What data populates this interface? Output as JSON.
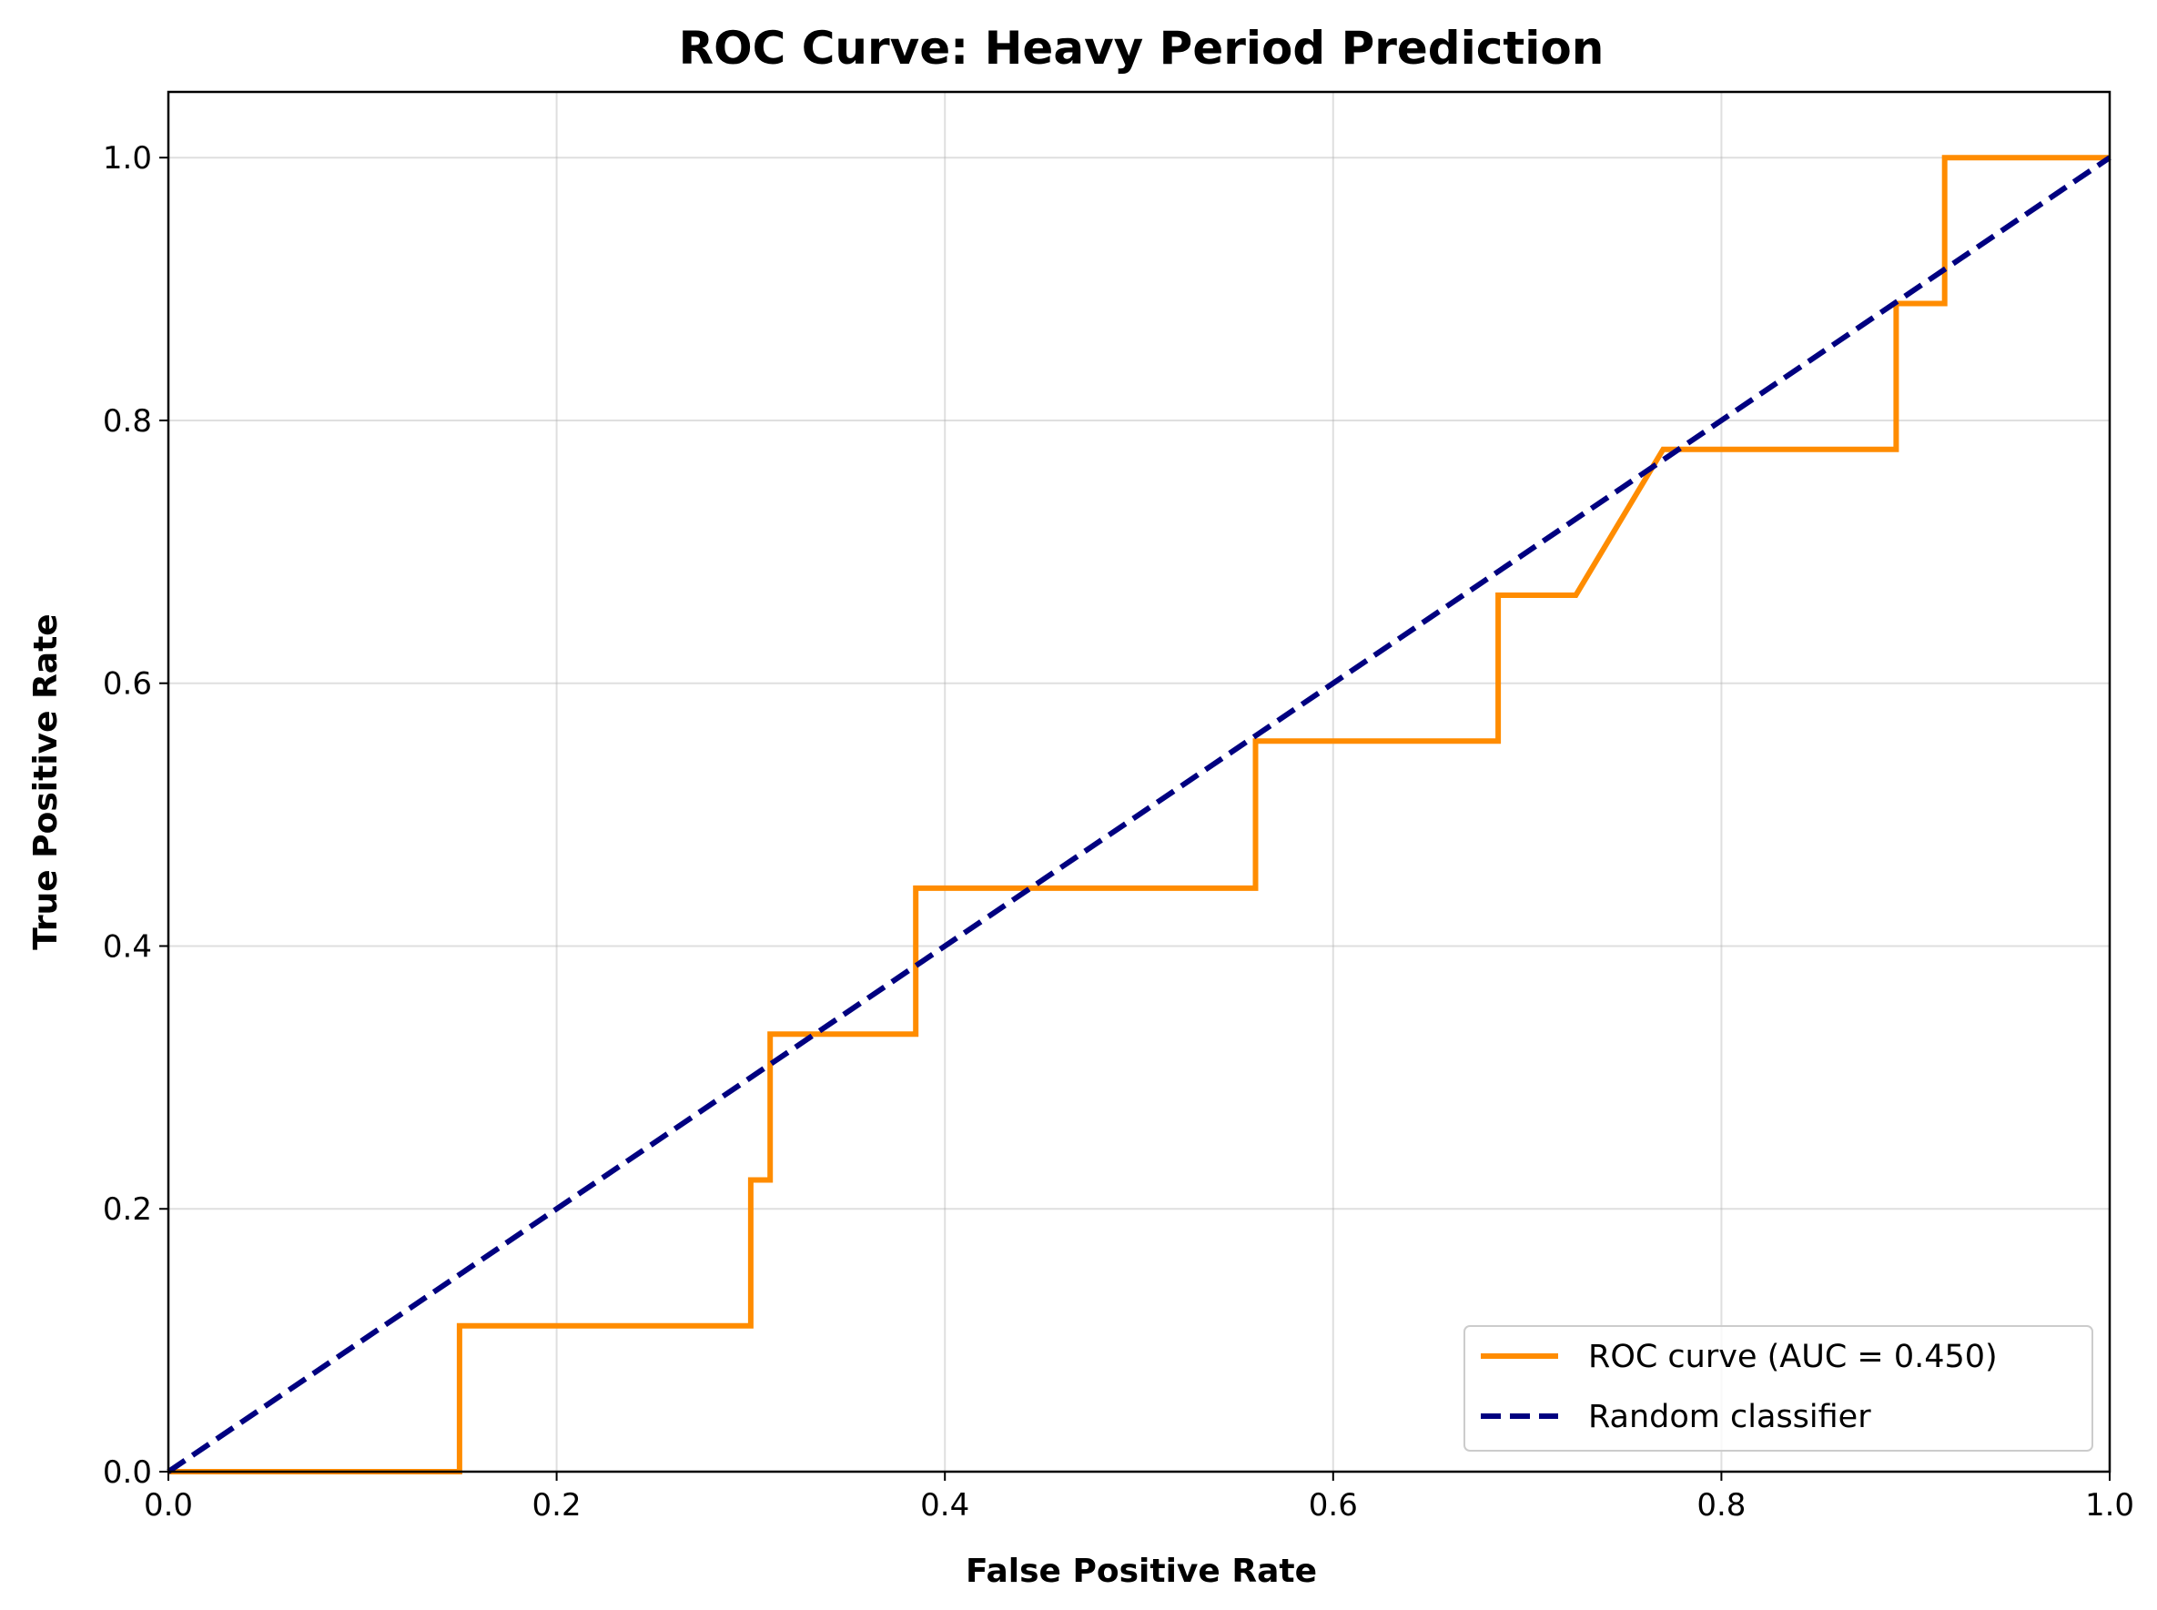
{
  "chart_data": {
    "type": "line",
    "title": "ROC Curve: Heavy Period Prediction",
    "xlabel": "False Positive Rate",
    "ylabel": "True Positive Rate",
    "xlim": [
      0.0,
      1.0
    ],
    "ylim": [
      0.0,
      1.05
    ],
    "xticks": [
      0.0,
      0.2,
      0.4,
      0.6,
      0.8,
      1.0
    ],
    "xtick_labels": [
      "0.0",
      "0.2",
      "0.4",
      "0.6",
      "0.8",
      "1.0"
    ],
    "yticks": [
      0.0,
      0.2,
      0.4,
      0.6,
      0.8,
      1.0
    ],
    "ytick_labels": [
      "0.0",
      "0.2",
      "0.4",
      "0.6",
      "0.8",
      "1.0"
    ],
    "grid": true,
    "legend_position": "lower-right",
    "series": [
      {
        "name": "ROC curve (AUC = 0.450)",
        "color": "#ff8c00",
        "style": "solid",
        "x": [
          0.0,
          0.15,
          0.15,
          0.3,
          0.3,
          0.31,
          0.31,
          0.385,
          0.385,
          0.56,
          0.56,
          0.685,
          0.685,
          0.725,
          0.77,
          0.89,
          0.89,
          0.915,
          0.915,
          1.0
        ],
        "y": [
          0.0,
          0.0,
          0.111,
          0.111,
          0.222,
          0.222,
          0.333,
          0.333,
          0.444,
          0.444,
          0.556,
          0.556,
          0.667,
          0.667,
          0.778,
          0.778,
          0.889,
          0.889,
          1.0,
          1.0
        ]
      },
      {
        "name": "Random classifier",
        "color": "#000080",
        "style": "dashed",
        "x": [
          0.0,
          1.0
        ],
        "y": [
          0.0,
          1.0
        ]
      }
    ]
  }
}
